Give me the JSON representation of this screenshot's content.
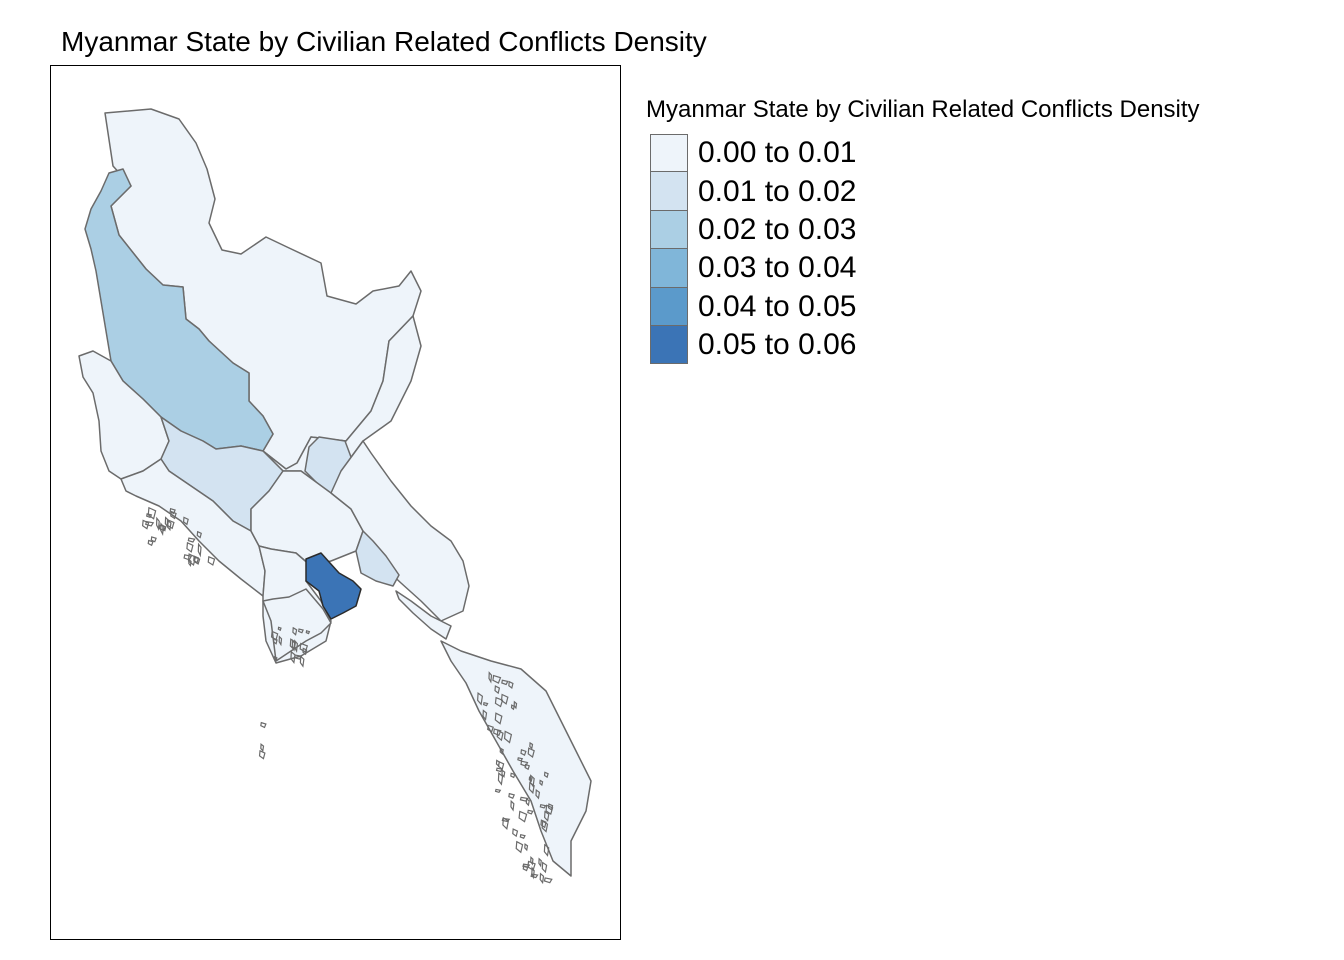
{
  "title": "Myanmar State by Civilian Related Conflicts Density",
  "legend": {
    "title": "Myanmar State by Civilian Related Conflicts Density",
    "items": [
      {
        "label": "0.00 to 0.01",
        "color": "#eef4fa"
      },
      {
        "label": "0.01 to 0.02",
        "color": "#d3e3f1"
      },
      {
        "label": "0.02 to 0.03",
        "color": "#abcfe4"
      },
      {
        "label": "0.03 to 0.04",
        "color": "#80b6d9"
      },
      {
        "label": "0.04 to 0.05",
        "color": "#5b9acb"
      },
      {
        "label": "0.05 to 0.06",
        "color": "#3b74b6"
      }
    ]
  },
  "map": {
    "border_color": "#6b6b6b",
    "regions": [
      {
        "class": "0.00 to 0.01",
        "color": "#eef4fa"
      },
      {
        "class": "0.02 to 0.03",
        "color": "#abcfe4"
      },
      {
        "class": "0.00 to 0.01",
        "color": "#eef4fa"
      },
      {
        "class": "0.00 to 0.01",
        "color": "#eef4fa"
      },
      {
        "class": "0.01 to 0.02",
        "color": "#d3e3f1"
      },
      {
        "class": "0.01 to 0.02",
        "color": "#d3e3f1"
      },
      {
        "class": "0.00 to 0.01",
        "color": "#eef4fa"
      },
      {
        "class": "0.00 to 0.01",
        "color": "#eef4fa"
      },
      {
        "class": "0.00 to 0.01",
        "color": "#eef4fa"
      },
      {
        "class": "0.05 to 0.06",
        "color": "#3b74b6"
      },
      {
        "class": "0.00 to 0.01",
        "color": "#eef4fa"
      },
      {
        "class": "0.01 to 0.02",
        "color": "#d3e3f1"
      },
      {
        "class": "0.00 to 0.01",
        "color": "#eef4fa"
      },
      {
        "class": "0.00 to 0.01",
        "color": "#eef4fa"
      },
      {
        "class": "0.00 to 0.01",
        "color": "#eef4fa"
      }
    ]
  }
}
